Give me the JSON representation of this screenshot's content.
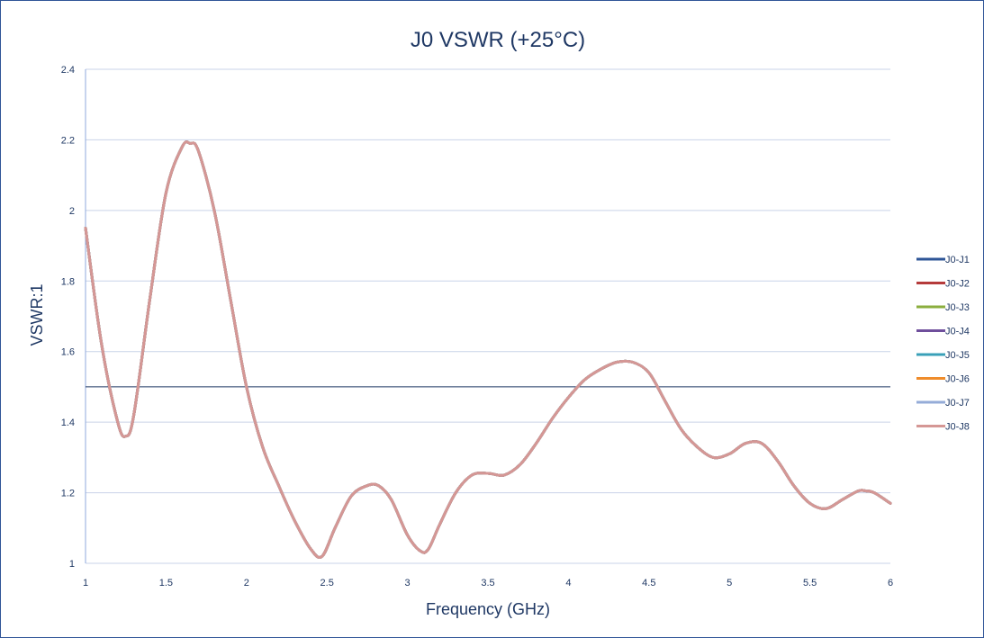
{
  "chart_data": {
    "type": "line",
    "title": "J0 VSWR (+25°C)",
    "xlabel": "Frequency (GHz)",
    "ylabel": "VSWR:1",
    "xlim": [
      1,
      6
    ],
    "ylim": [
      1,
      2.4
    ],
    "x_ticks": [
      "1",
      "1.5",
      "2",
      "2.5",
      "3",
      "3.5",
      "4",
      "4.5",
      "5",
      "5.5",
      "6"
    ],
    "y_ticks": [
      "1",
      "1.2",
      "1.4",
      "1.6",
      "1.8",
      "2",
      "2.2",
      "2.4"
    ],
    "grid": "horizontal",
    "legend_position": "right",
    "reference_line": 1.5,
    "reference_line_color": "#1f3864",
    "x": [
      1.0,
      1.1,
      1.2,
      1.25,
      1.3,
      1.4,
      1.5,
      1.6,
      1.65,
      1.7,
      1.8,
      1.9,
      2.0,
      2.1,
      2.2,
      2.3,
      2.4,
      2.47,
      2.55,
      2.65,
      2.75,
      2.82,
      2.9,
      3.0,
      3.08,
      3.13,
      3.2,
      3.3,
      3.4,
      3.5,
      3.6,
      3.7,
      3.8,
      3.9,
      4.0,
      4.1,
      4.2,
      4.3,
      4.4,
      4.5,
      4.6,
      4.7,
      4.8,
      4.9,
      5.0,
      5.1,
      5.2,
      5.3,
      5.4,
      5.5,
      5.6,
      5.7,
      5.8,
      5.85,
      5.9,
      6.0
    ],
    "series": [
      {
        "name": "J0-J1",
        "color": "#2e5597",
        "values": [
          1.95,
          1.62,
          1.4,
          1.36,
          1.42,
          1.75,
          2.05,
          2.18,
          2.19,
          2.17,
          2.0,
          1.75,
          1.5,
          1.33,
          1.22,
          1.12,
          1.04,
          1.02,
          1.1,
          1.19,
          1.22,
          1.22,
          1.18,
          1.08,
          1.035,
          1.04,
          1.11,
          1.2,
          1.25,
          1.255,
          1.25,
          1.28,
          1.34,
          1.41,
          1.47,
          1.52,
          1.55,
          1.57,
          1.57,
          1.54,
          1.46,
          1.38,
          1.33,
          1.3,
          1.31,
          1.34,
          1.34,
          1.29,
          1.22,
          1.17,
          1.155,
          1.18,
          1.205,
          1.205,
          1.2,
          1.17
        ]
      },
      {
        "name": "J0-J2",
        "color": "#b53b3b",
        "values": [
          1.95,
          1.62,
          1.4,
          1.36,
          1.42,
          1.75,
          2.05,
          2.18,
          2.19,
          2.17,
          2.0,
          1.75,
          1.5,
          1.33,
          1.22,
          1.12,
          1.04,
          1.02,
          1.1,
          1.19,
          1.22,
          1.22,
          1.18,
          1.08,
          1.035,
          1.04,
          1.11,
          1.2,
          1.25,
          1.255,
          1.25,
          1.28,
          1.34,
          1.41,
          1.47,
          1.52,
          1.55,
          1.57,
          1.57,
          1.54,
          1.46,
          1.38,
          1.33,
          1.3,
          1.31,
          1.34,
          1.34,
          1.29,
          1.22,
          1.17,
          1.155,
          1.18,
          1.205,
          1.205,
          1.2,
          1.17
        ]
      },
      {
        "name": "J0-J3",
        "color": "#8bae3e",
        "values": [
          1.95,
          1.62,
          1.4,
          1.36,
          1.42,
          1.75,
          2.05,
          2.18,
          2.19,
          2.17,
          2.0,
          1.75,
          1.5,
          1.33,
          1.22,
          1.12,
          1.04,
          1.02,
          1.1,
          1.19,
          1.22,
          1.22,
          1.18,
          1.08,
          1.035,
          1.04,
          1.11,
          1.2,
          1.25,
          1.255,
          1.25,
          1.28,
          1.34,
          1.41,
          1.47,
          1.52,
          1.55,
          1.57,
          1.57,
          1.54,
          1.46,
          1.38,
          1.33,
          1.3,
          1.31,
          1.34,
          1.34,
          1.29,
          1.22,
          1.17,
          1.155,
          1.18,
          1.205,
          1.205,
          1.2,
          1.17
        ]
      },
      {
        "name": "J0-J4",
        "color": "#6f4f9c",
        "values": [
          1.95,
          1.62,
          1.4,
          1.36,
          1.42,
          1.75,
          2.05,
          2.18,
          2.19,
          2.17,
          2.0,
          1.75,
          1.5,
          1.33,
          1.22,
          1.12,
          1.04,
          1.02,
          1.1,
          1.19,
          1.22,
          1.22,
          1.18,
          1.08,
          1.035,
          1.04,
          1.11,
          1.2,
          1.25,
          1.255,
          1.25,
          1.28,
          1.34,
          1.41,
          1.47,
          1.52,
          1.55,
          1.57,
          1.57,
          1.54,
          1.46,
          1.38,
          1.33,
          1.3,
          1.31,
          1.34,
          1.34,
          1.29,
          1.22,
          1.17,
          1.155,
          1.18,
          1.205,
          1.205,
          1.2,
          1.17
        ]
      },
      {
        "name": "J0-J5",
        "color": "#3aa0b8",
        "values": [
          1.95,
          1.62,
          1.4,
          1.36,
          1.42,
          1.75,
          2.05,
          2.18,
          2.19,
          2.17,
          2.0,
          1.75,
          1.5,
          1.33,
          1.22,
          1.12,
          1.04,
          1.02,
          1.1,
          1.19,
          1.22,
          1.22,
          1.18,
          1.08,
          1.035,
          1.04,
          1.11,
          1.2,
          1.25,
          1.255,
          1.25,
          1.28,
          1.34,
          1.41,
          1.47,
          1.52,
          1.55,
          1.57,
          1.57,
          1.54,
          1.46,
          1.38,
          1.33,
          1.3,
          1.31,
          1.34,
          1.34,
          1.29,
          1.22,
          1.17,
          1.155,
          1.18,
          1.205,
          1.205,
          1.2,
          1.17
        ]
      },
      {
        "name": "J0-J6",
        "color": "#ef8c2b",
        "values": [
          1.95,
          1.62,
          1.4,
          1.36,
          1.42,
          1.75,
          2.05,
          2.18,
          2.19,
          2.17,
          2.0,
          1.75,
          1.5,
          1.33,
          1.22,
          1.12,
          1.04,
          1.02,
          1.1,
          1.19,
          1.22,
          1.22,
          1.18,
          1.08,
          1.035,
          1.04,
          1.11,
          1.2,
          1.25,
          1.255,
          1.25,
          1.28,
          1.34,
          1.41,
          1.47,
          1.52,
          1.55,
          1.57,
          1.57,
          1.54,
          1.46,
          1.38,
          1.33,
          1.3,
          1.31,
          1.34,
          1.34,
          1.29,
          1.22,
          1.17,
          1.155,
          1.18,
          1.205,
          1.205,
          1.2,
          1.17
        ]
      },
      {
        "name": "J0-J7",
        "color": "#95acd8",
        "values": [
          1.95,
          1.62,
          1.4,
          1.36,
          1.42,
          1.75,
          2.05,
          2.18,
          2.19,
          2.17,
          2.0,
          1.75,
          1.5,
          1.33,
          1.22,
          1.12,
          1.04,
          1.02,
          1.1,
          1.19,
          1.22,
          1.22,
          1.18,
          1.08,
          1.035,
          1.04,
          1.11,
          1.2,
          1.25,
          1.255,
          1.25,
          1.28,
          1.34,
          1.41,
          1.47,
          1.52,
          1.55,
          1.57,
          1.57,
          1.54,
          1.46,
          1.38,
          1.33,
          1.3,
          1.31,
          1.34,
          1.34,
          1.29,
          1.22,
          1.17,
          1.155,
          1.18,
          1.205,
          1.205,
          1.2,
          1.17
        ]
      },
      {
        "name": "J0-J8",
        "color": "#d59795",
        "values": [
          1.95,
          1.62,
          1.4,
          1.36,
          1.42,
          1.75,
          2.05,
          2.18,
          2.19,
          2.17,
          2.0,
          1.75,
          1.5,
          1.33,
          1.22,
          1.12,
          1.04,
          1.02,
          1.1,
          1.19,
          1.22,
          1.22,
          1.18,
          1.08,
          1.035,
          1.04,
          1.11,
          1.2,
          1.25,
          1.255,
          1.25,
          1.28,
          1.34,
          1.41,
          1.47,
          1.52,
          1.55,
          1.57,
          1.57,
          1.54,
          1.46,
          1.38,
          1.33,
          1.3,
          1.31,
          1.34,
          1.34,
          1.29,
          1.22,
          1.17,
          1.155,
          1.18,
          1.205,
          1.205,
          1.2,
          1.17
        ]
      }
    ],
    "colors": {
      "text": "#1f3864",
      "grid": "#c9d3e8",
      "axis": "#8faadc",
      "border": "#2f5597"
    }
  }
}
